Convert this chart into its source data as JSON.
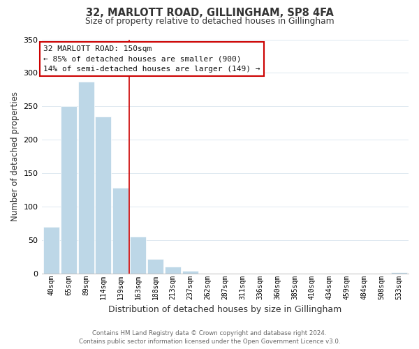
{
  "title": "32, MARLOTT ROAD, GILLINGHAM, SP8 4FA",
  "subtitle": "Size of property relative to detached houses in Gillingham",
  "xlabel": "Distribution of detached houses by size in Gillingham",
  "ylabel": "Number of detached properties",
  "bar_labels": [
    "40sqm",
    "65sqm",
    "89sqm",
    "114sqm",
    "139sqm",
    "163sqm",
    "188sqm",
    "213sqm",
    "237sqm",
    "262sqm",
    "287sqm",
    "311sqm",
    "336sqm",
    "360sqm",
    "385sqm",
    "410sqm",
    "434sqm",
    "459sqm",
    "484sqm",
    "508sqm",
    "533sqm"
  ],
  "bar_values": [
    70,
    250,
    287,
    235,
    128,
    55,
    22,
    10,
    4,
    0,
    0,
    0,
    0,
    0,
    0,
    0,
    0,
    0,
    0,
    0,
    2
  ],
  "bar_color": "#bdd7e7",
  "highlight_line_color": "#cc0000",
  "annotation_title": "32 MARLOTT ROAD: 150sqm",
  "annotation_line1": "← 85% of detached houses are smaller (900)",
  "annotation_line2": "14% of semi-detached houses are larger (149) →",
  "annotation_box_color": "#ffffff",
  "annotation_box_edge": "#cc0000",
  "ylim": [
    0,
    350
  ],
  "yticks": [
    0,
    50,
    100,
    150,
    200,
    250,
    300,
    350
  ],
  "footer1": "Contains HM Land Registry data © Crown copyright and database right 2024.",
  "footer2": "Contains public sector information licensed under the Open Government Licence v3.0.",
  "background_color": "#ffffff",
  "grid_color": "#dde8f0"
}
